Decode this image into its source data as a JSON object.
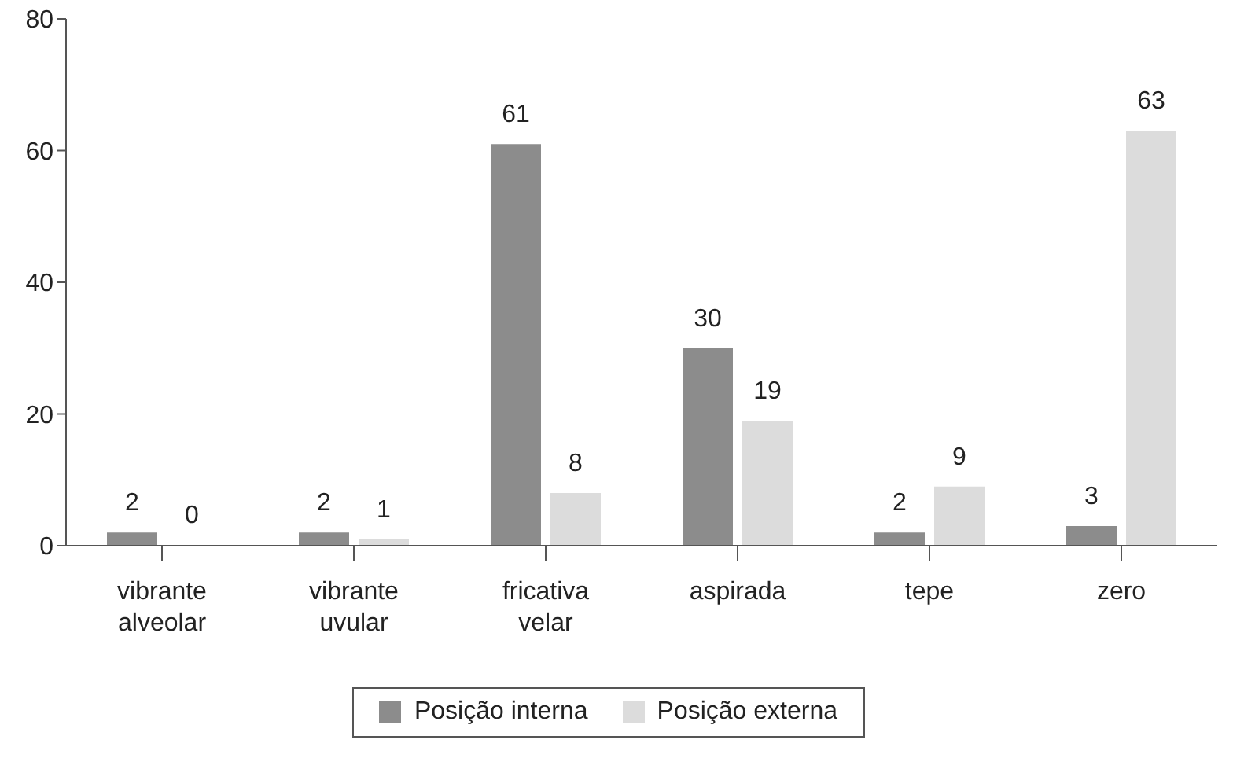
{
  "chart_data": {
    "type": "bar",
    "categories": [
      "vibrante alveolar",
      "vibrante uvular",
      "fricativa velar",
      "aspirada",
      "tepe",
      "zero"
    ],
    "series": [
      {
        "name": "Posição interna",
        "color": "#8c8c8c",
        "values": [
          2,
          2,
          61,
          30,
          2,
          3
        ]
      },
      {
        "name": "Posição externa",
        "color": "#dcdcdc",
        "values": [
          0,
          1,
          8,
          19,
          9,
          63
        ]
      }
    ],
    "ylim": [
      0,
      80
    ],
    "yticks": [
      0,
      20,
      40,
      60,
      80
    ],
    "grid": false,
    "legend": "bottom",
    "data_labels": true
  }
}
